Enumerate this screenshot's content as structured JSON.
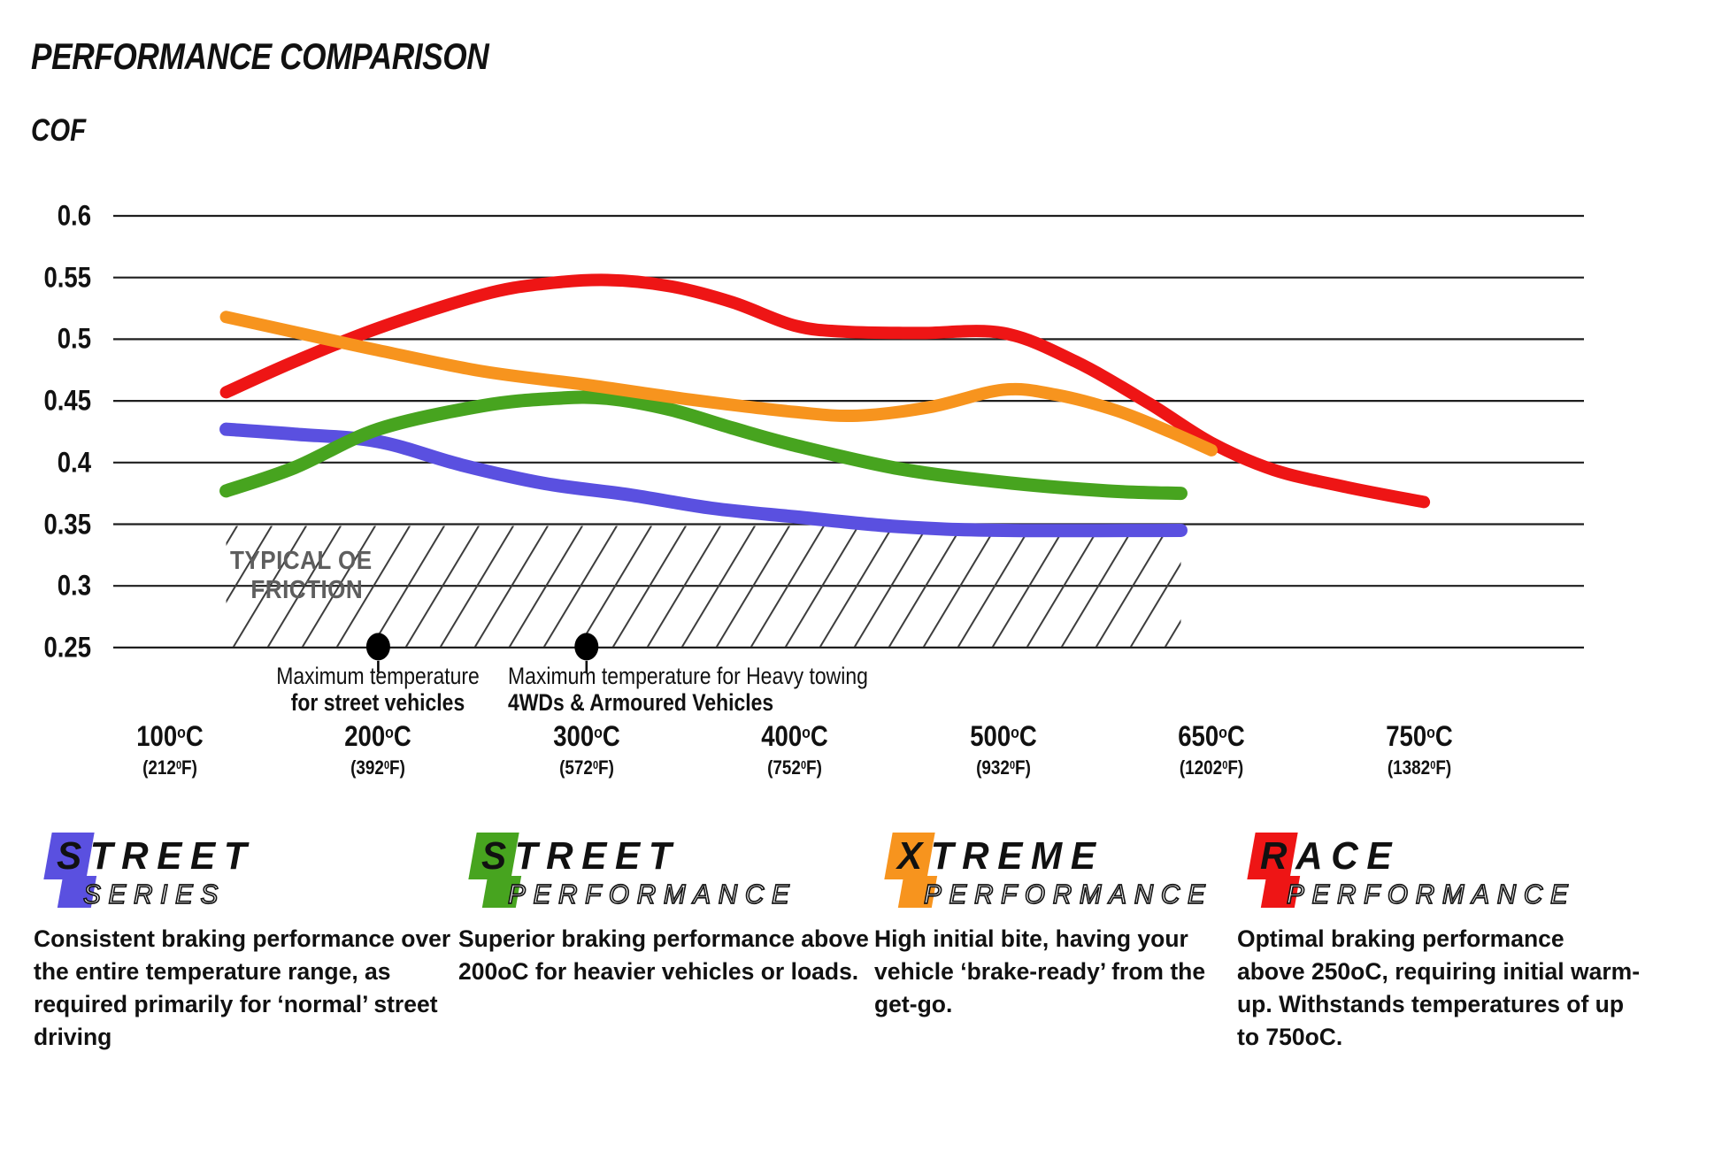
{
  "header": {
    "title": "PERFORMANCE COMPARISON",
    "axis_title": "COF"
  },
  "oe_region": {
    "line1": "TYPICAL OE",
    "line2": "FRICTION"
  },
  "annotations": [
    {
      "line1": "Maximum temperature",
      "line2": "for street vehicles",
      "temp_c": 200
    },
    {
      "line1": "Maximum temperature for Heavy towing",
      "line2": "4WDs & Armoured Vehicles",
      "temp_c": 300
    }
  ],
  "axis": {
    "y_ticks": [
      "0.6",
      "0.55",
      "0.5",
      "0.45",
      "0.4",
      "0.35",
      "0.3",
      "0.25"
    ],
    "x_ticks": [
      {
        "c": "100",
        "f": "(212"
      },
      {
        "c": "200",
        "f": "(392"
      },
      {
        "c": "300",
        "f": "(572"
      },
      {
        "c": "400",
        "f": "(752"
      },
      {
        "c": "500",
        "f": "(932"
      },
      {
        "c": "650",
        "f": "(1202"
      },
      {
        "c": "750",
        "f": "(1382"
      }
    ],
    "sup_c": "o",
    "unit_c": "C",
    "sup_f": "0",
    "unit_f": "F)"
  },
  "chart_data": {
    "type": "line",
    "title": "PERFORMANCE COMPARISON",
    "ylabel": "COF",
    "ylim": [
      0.25,
      0.6
    ],
    "grid": "horizontal-only",
    "y_gridlines": [
      0.6,
      0.55,
      0.5,
      0.45,
      0.4,
      0.35,
      0.3,
      0.25
    ],
    "x_tick_temps_c": [
      100,
      200,
      300,
      400,
      500,
      650,
      750
    ],
    "oe_band": {
      "label": "TYPICAL OE FRICTION",
      "cof_min": 0.25,
      "cof_max": 0.35,
      "temp_start_c": 127,
      "temp_end_c": 628
    },
    "markers": [
      {
        "temp_c": 200,
        "cof": 0.25,
        "label": "Maximum temperature for street vehicles"
      },
      {
        "temp_c": 300,
        "cof": 0.25,
        "label": "Maximum temperature for Heavy towing 4WDs & Armoured Vehicles"
      }
    ],
    "series": [
      {
        "name": "Street Series",
        "color": "#5a50e0",
        "width": 15,
        "points": [
          [
            127,
            0.427
          ],
          [
            160,
            0.423
          ],
          [
            200,
            0.417
          ],
          [
            240,
            0.398
          ],
          [
            280,
            0.383
          ],
          [
            320,
            0.374
          ],
          [
            360,
            0.363
          ],
          [
            400,
            0.356
          ],
          [
            450,
            0.348
          ],
          [
            500,
            0.345
          ],
          [
            628,
            0.345
          ]
        ]
      },
      {
        "name": "Street Performance",
        "color": "#47a41f",
        "width": 15,
        "points": [
          [
            127,
            0.377
          ],
          [
            160,
            0.396
          ],
          [
            200,
            0.427
          ],
          [
            250,
            0.446
          ],
          [
            285,
            0.452
          ],
          [
            310,
            0.452
          ],
          [
            340,
            0.443
          ],
          [
            370,
            0.428
          ],
          [
            400,
            0.414
          ],
          [
            450,
            0.395
          ],
          [
            500,
            0.384
          ],
          [
            575,
            0.377
          ],
          [
            628,
            0.375
          ]
        ]
      },
      {
        "name": "Race Performance",
        "color": "#ee1515",
        "width": 14,
        "points": [
          [
            127,
            0.457
          ],
          [
            160,
            0.482
          ],
          [
            200,
            0.509
          ],
          [
            250,
            0.536
          ],
          [
            280,
            0.545
          ],
          [
            310,
            0.548
          ],
          [
            340,
            0.543
          ],
          [
            370,
            0.53
          ],
          [
            400,
            0.511
          ],
          [
            425,
            0.506
          ],
          [
            460,
            0.505
          ],
          [
            500,
            0.505
          ],
          [
            552,
            0.482
          ],
          [
            605,
            0.448
          ],
          [
            650,
            0.416
          ],
          [
            680,
            0.394
          ],
          [
            715,
            0.38
          ],
          [
            752,
            0.368
          ]
        ]
      },
      {
        "name": "Xtreme Performance",
        "color": "#f7941e",
        "width": 14,
        "points": [
          [
            127,
            0.518
          ],
          [
            170,
            0.502
          ],
          [
            200,
            0.491
          ],
          [
            250,
            0.474
          ],
          [
            300,
            0.463
          ],
          [
            350,
            0.451
          ],
          [
            400,
            0.441
          ],
          [
            430,
            0.438
          ],
          [
            465,
            0.445
          ],
          [
            500,
            0.459
          ],
          [
            538,
            0.455
          ],
          [
            582,
            0.442
          ],
          [
            620,
            0.425
          ],
          [
            650,
            0.41
          ]
        ]
      }
    ]
  },
  "legend": {
    "items": [
      {
        "word1": "STREET",
        "word2": "SERIES",
        "color": "#5a50e0",
        "desc": "Consistent braking performance over\nthe entire temperature range, as\nrequired primarily for ‘normal’ street\ndriving"
      },
      {
        "word1": "STREET",
        "word2": "PERFORMANCE",
        "color": "#47a41f",
        "desc": "Superior braking performance above\n200oC for heavier vehicles or loads."
      },
      {
        "word1": "XTREME",
        "word2": "PERFORMANCE",
        "color": "#f7941e",
        "desc": "High initial bite, having your\nvehicle ‘brake-ready’ from the\nget-go."
      },
      {
        "word1": "RACE",
        "word2": "PERFORMANCE",
        "color": "#ee1515",
        "desc": "Optimal braking performance\nabove 250oC, requiring initial warm-\nup. Withstands temperatures of up\nto 750oC."
      }
    ]
  }
}
